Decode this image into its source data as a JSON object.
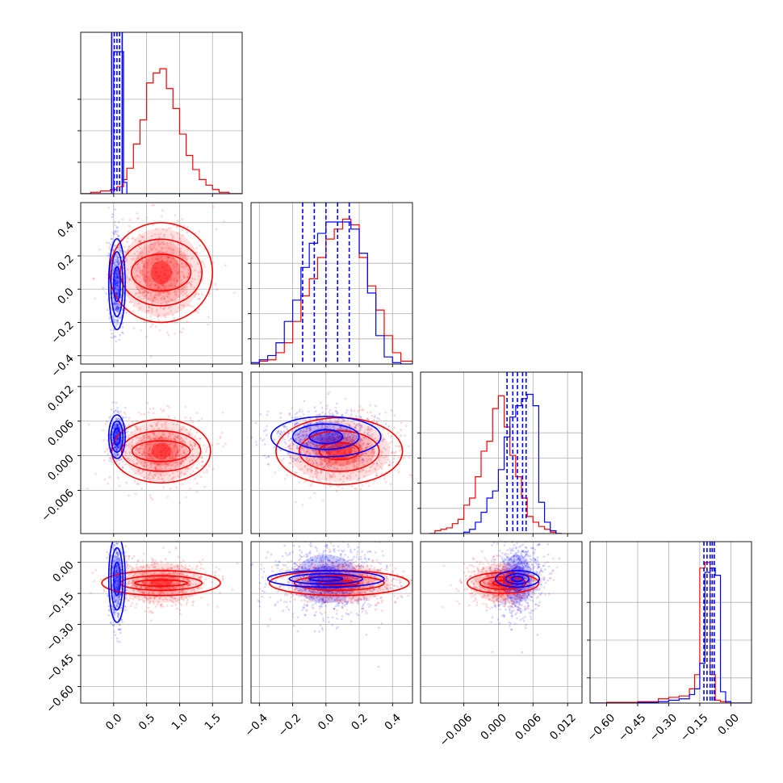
{
  "chart_data": {
    "type": "corner",
    "series": [
      {
        "name": "",
        "color": "#0000ff"
      },
      {
        "name": "",
        "color": "#ff0000"
      }
    ],
    "grid": true,
    "parameters": [
      {
        "range": [
          -0.5,
          1.95
        ],
        "ticks": [
          0.0,
          0.5,
          1.0,
          1.5
        ],
        "tick_labels": [
          "0.0",
          "0.5",
          "1.0",
          "1.5"
        ],
        "hist_y_ticks": [
          0.25,
          0.5,
          0.75
        ],
        "hist_y_max": 1.0,
        "hist_edges": [
          -0.5,
          -0.35,
          -0.2,
          -0.05,
          0.0,
          0.05,
          0.1,
          0.15,
          0.2,
          0.3,
          0.4,
          0.5,
          0.6,
          0.7,
          0.8,
          0.9,
          1.0,
          1.1,
          1.2,
          1.3,
          1.4,
          1.5,
          1.6,
          1.75,
          1.95
        ],
        "hist_blue": [
          0,
          0,
          0,
          0,
          1.0,
          1.0,
          1.0,
          0.08,
          0,
          0,
          0,
          0,
          0,
          0,
          0,
          0,
          0,
          0,
          0,
          0,
          0,
          0,
          0,
          0
        ],
        "hist_red": [
          0,
          0.01,
          0.02,
          0.03,
          0.03,
          0.05,
          0.05,
          0.1,
          0.18,
          0.35,
          0.52,
          0.78,
          0.85,
          0.88,
          0.74,
          0.6,
          0.42,
          0.27,
          0.17,
          0.1,
          0.06,
          0.03,
          0.01,
          0
        ],
        "blue_quantiles": [
          -0.03,
          0.01,
          0.05,
          0.09,
          0.13
        ]
      },
      {
        "range": [
          -0.45,
          0.52
        ],
        "ticks": [
          -0.4,
          -0.2,
          0.0,
          0.2,
          0.4
        ],
        "tick_labels": [
          "−0.4",
          "−0.2",
          "0.0",
          "0.2",
          "0.4"
        ],
        "hist_y_ticks": [
          0.2,
          0.4,
          0.6,
          0.8
        ],
        "hist_y_max": 1.0,
        "hist_edges": [
          -0.45,
          -0.4,
          -0.35,
          -0.3,
          -0.25,
          -0.2,
          -0.15,
          -0.1,
          -0.05,
          0.0,
          0.05,
          0.1,
          0.15,
          0.2,
          0.25,
          0.3,
          0.35,
          0.4,
          0.45,
          0.52
        ],
        "hist_blue": [
          0.01,
          0.03,
          0.06,
          0.15,
          0.3,
          0.45,
          0.68,
          0.85,
          0.92,
          1.0,
          1.0,
          1.0,
          0.95,
          0.78,
          0.5,
          0.2,
          0.05,
          0.01,
          0
        ],
        "hist_red": [
          0,
          0.02,
          0.03,
          0.08,
          0.15,
          0.3,
          0.48,
          0.6,
          0.75,
          0.88,
          0.95,
          1.02,
          0.98,
          0.75,
          0.55,
          0.38,
          0.2,
          0.08,
          0.02
        ],
        "blue_quantiles": [
          -0.14,
          -0.07,
          0.0,
          0.07,
          0.14
        ]
      },
      {
        "range": [
          -0.0135,
          0.0145
        ],
        "ticks": [
          -0.006,
          0.0,
          0.006,
          0.012
        ],
        "tick_labels": [
          "−0.006",
          "0.000",
          "0.006",
          "0.012"
        ],
        "hist_y_ticks": [
          0.2,
          0.4,
          0.6,
          0.8
        ],
        "hist_y_max": 1.0,
        "hist_edges": [
          -0.012,
          -0.011,
          -0.01,
          -0.009,
          -0.008,
          -0.007,
          -0.006,
          -0.005,
          -0.004,
          -0.003,
          -0.002,
          -0.001,
          0.0,
          0.001,
          0.002,
          0.003,
          0.004,
          0.005,
          0.006,
          0.007,
          0.008,
          0.009,
          0.01,
          0.011
        ],
        "hist_blue": [
          0,
          0,
          0,
          0,
          0,
          0,
          0.01,
          0.03,
          0.08,
          0.15,
          0.25,
          0.3,
          0.45,
          0.68,
          0.82,
          0.9,
          0.95,
          0.98,
          0.9,
          0.22,
          0.08,
          0.02,
          0,
          0
        ],
        "hist_red": [
          0,
          0.02,
          0.03,
          0.04,
          0.07,
          0.1,
          0.2,
          0.25,
          0.4,
          0.58,
          0.65,
          0.88,
          0.97,
          0.75,
          0.55,
          0.4,
          0.25,
          0.12,
          0.08,
          0.05,
          0.03,
          0.01,
          0,
          0
        ],
        "blue_quantiles": [
          0.0015,
          0.0025,
          0.0033,
          0.0042,
          0.0048
        ]
      },
      {
        "range": [
          -0.68,
          0.1
        ],
        "ticks": [
          -0.6,
          -0.45,
          -0.3,
          -0.15,
          0.0
        ],
        "tick_labels": [
          "−0.60",
          "−0.45",
          "−0.30",
          "−0.15",
          "0.00"
        ],
        "hist_y_ticks": [
          0.2,
          0.5,
          0.8
        ],
        "hist_y_max": 1.0,
        "hist_edges": [
          -0.68,
          -0.6,
          -0.45,
          -0.35,
          -0.3,
          -0.25,
          -0.2,
          -0.175,
          -0.15,
          -0.125,
          -0.1,
          -0.075,
          -0.05,
          -0.025,
          0.0,
          0.1
        ],
        "hist_blue": [
          0,
          0,
          0.005,
          0.01,
          0.02,
          0.03,
          0.06,
          0.1,
          0.28,
          0.92,
          0.95,
          0.9,
          0.08,
          0.01,
          0
        ],
        "hist_red": [
          0,
          0.005,
          0.01,
          0.03,
          0.04,
          0.05,
          0.1,
          0.2,
          0.95,
          0.99,
          0.2,
          0.02,
          0.01,
          0,
          0
        ],
        "blue_quantiles": [
          -0.13,
          -0.115,
          -0.1,
          -0.09,
          -0.08
        ]
      }
    ],
    "pairs": [
      {
        "row": 1,
        "col": 0,
        "blue": {
          "mx": 0.05,
          "my": 0.03,
          "sx": 0.05,
          "sy": 0.13,
          "n": 500
        },
        "red": {
          "mx": 0.72,
          "my": 0.1,
          "sx": 0.32,
          "sy": 0.14,
          "n": 700,
          "contour_x": [
            0.45,
            0.62,
            0.78
          ],
          "contour_y": [
            0.11,
            0.2,
            0.3
          ]
        }
      },
      {
        "row": 2,
        "col": 0,
        "blue": {
          "mx": 0.05,
          "my": 0.0033,
          "sx": 0.05,
          "sy": 0.0018,
          "n": 500
        },
        "red": {
          "mx": 0.72,
          "my": 0.0008,
          "sx": 0.3,
          "sy": 0.0028,
          "n": 700,
          "contour_x": [
            0.44,
            0.6,
            0.75
          ],
          "contour_y": [
            0.0018,
            0.0035,
            0.0055
          ]
        }
      },
      {
        "row": 3,
        "col": 0,
        "blue": {
          "mx": 0.05,
          "my": -0.08,
          "sx": 0.05,
          "sy": 0.1,
          "n": 500
        },
        "red": {
          "mx": 0.72,
          "my": -0.1,
          "sx": 0.33,
          "sy": 0.05,
          "n": 700,
          "contour_x": [
            0.4,
            0.62,
            0.9
          ],
          "contour_y": [
            0.015,
            0.035,
            0.06
          ]
        }
      },
      {
        "row": 2,
        "col": 1,
        "blue": {
          "mx": 0.0,
          "my": 0.0033,
          "sx": 0.15,
          "sy": 0.002,
          "n": 700,
          "contour_x": [
            0.1,
            0.2,
            0.33
          ],
          "contour_y": [
            0.0012,
            0.0022,
            0.0035
          ]
        },
        "red": {
          "mx": 0.08,
          "my": 0.0008,
          "sx": 0.16,
          "sy": 0.0028,
          "n": 700,
          "contour_x": [
            0.12,
            0.24,
            0.38
          ],
          "contour_y": [
            0.0015,
            0.0035,
            0.0058
          ]
        }
      },
      {
        "row": 3,
        "col": 1,
        "blue": {
          "mx": 0.0,
          "my": -0.08,
          "sx": 0.15,
          "sy": 0.09,
          "n": 700,
          "contour_x": [
            0.1,
            0.22,
            0.35
          ],
          "contour_y": [
            0.01,
            0.025,
            0.04
          ]
        },
        "red": {
          "mx": 0.08,
          "my": -0.1,
          "sx": 0.16,
          "sy": 0.05,
          "n": 700,
          "contour_x": [
            0.12,
            0.27,
            0.42
          ],
          "contour_y": [
            0.012,
            0.035,
            0.06
          ]
        }
      },
      {
        "row": 3,
        "col": 2,
        "blue": {
          "mx": 0.0033,
          "my": -0.08,
          "sx": 0.002,
          "sy": 0.09,
          "n": 700,
          "contour_x": [
            0.001,
            0.002,
            0.0038
          ],
          "contour_y": [
            0.012,
            0.025,
            0.04
          ]
        },
        "red": {
          "mx": 0.0008,
          "my": -0.1,
          "sx": 0.0028,
          "sy": 0.05,
          "n": 700,
          "contour_x": [
            0.0018,
            0.004,
            0.0062
          ],
          "contour_y": [
            0.012,
            0.03,
            0.05
          ]
        }
      }
    ]
  }
}
